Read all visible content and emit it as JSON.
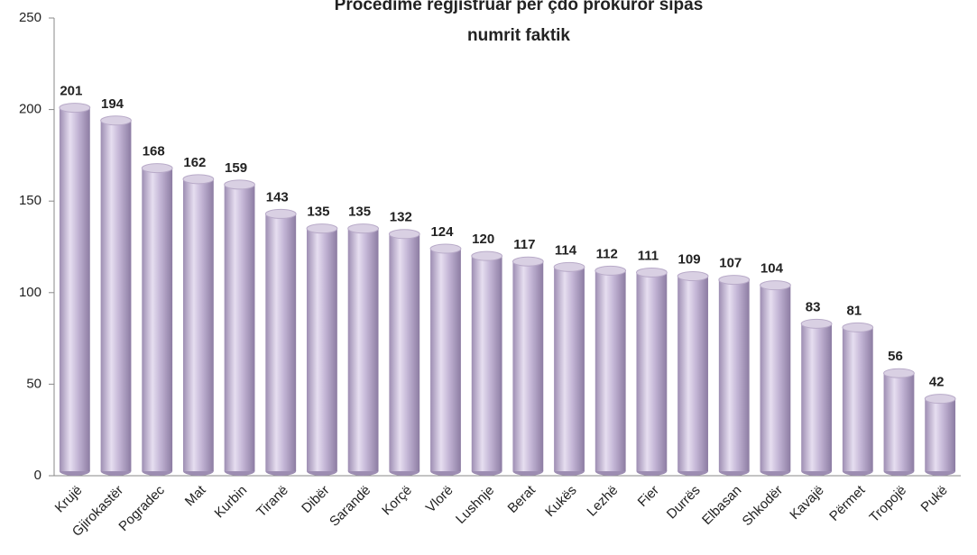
{
  "chart_data": {
    "type": "bar",
    "title": [
      "Procedime regjistruar për çdo prokuror sipas",
      "numrit faktik"
    ],
    "categories": [
      "Krujë",
      "Gjirokastër",
      "Pogradec",
      "Mat",
      "Kurbin",
      "Tiranë",
      "Dibër",
      "Sarandë",
      "Korçë",
      "Vlorë",
      "Lushnje",
      "Berat",
      "Kukës",
      "Lezhë",
      "Fier",
      "Durrës",
      "Elbasan",
      "Shkodër",
      "Kavajë",
      "Përmet",
      "Tropojë",
      "Pukë"
    ],
    "values": [
      201,
      194,
      168,
      162,
      159,
      143,
      135,
      135,
      132,
      124,
      120,
      117,
      114,
      112,
      111,
      109,
      107,
      104,
      83,
      81,
      56,
      42
    ],
    "color": "#b3a3c6",
    "ylim": [
      0,
      250
    ],
    "yticks": [
      0,
      50,
      100,
      150,
      200,
      250
    ],
    "grid": false
  }
}
